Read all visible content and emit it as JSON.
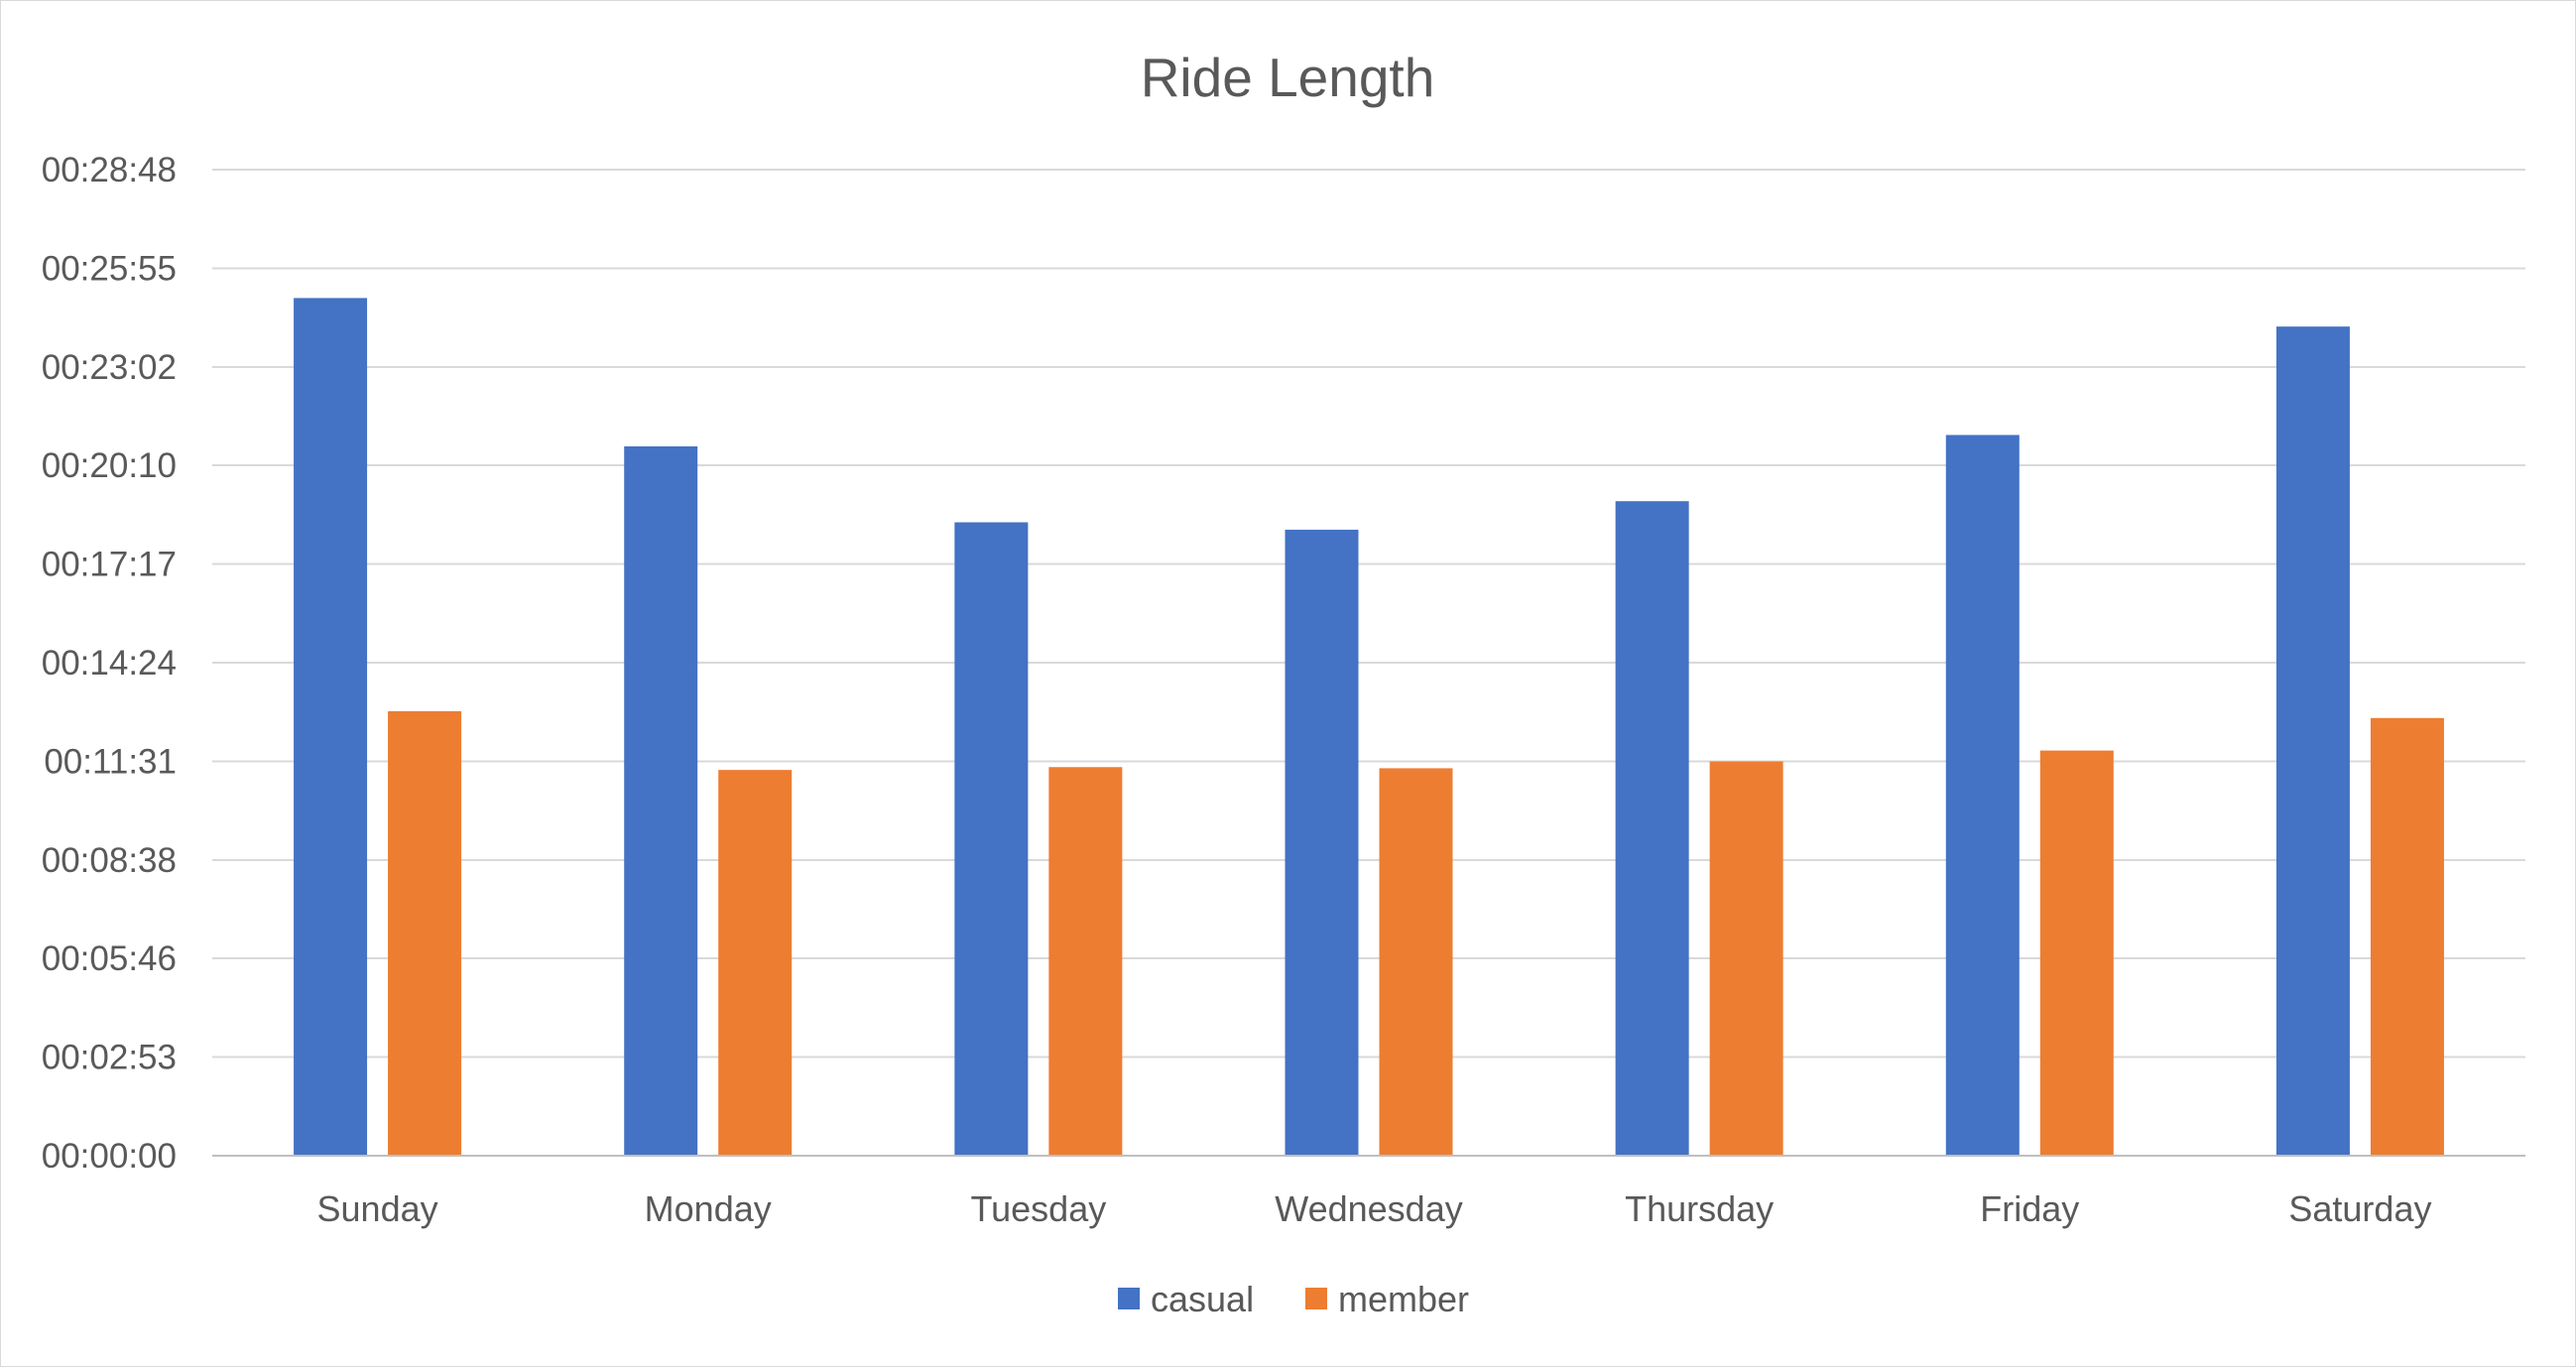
{
  "chart_data": {
    "type": "bar",
    "title": "Ride Length",
    "xlabel": "",
    "ylabel": "",
    "categories": [
      "Sunday",
      "Monday",
      "Tuesday",
      "Wednesday",
      "Thursday",
      "Friday",
      "Saturday"
    ],
    "series": [
      {
        "name": "casual",
        "color": "#4472C4",
        "values": [
          "00:25:03",
          "00:20:43",
          "00:18:30",
          "00:18:17",
          "00:19:07",
          "00:21:03",
          "00:24:13"
        ]
      },
      {
        "name": "member",
        "color": "#ED7D31",
        "values": [
          "00:12:59",
          "00:11:16",
          "00:11:21",
          "00:11:19",
          "00:11:31",
          "00:11:50",
          "00:12:47"
        ]
      }
    ],
    "yticks": [
      "00:00:00",
      "00:02:53",
      "00:05:46",
      "00:08:38",
      "00:11:31",
      "00:14:24",
      "00:17:17",
      "00:20:10",
      "00:23:02",
      "00:25:55",
      "00:28:48"
    ],
    "ylim": [
      "00:00:00",
      "00:28:48"
    ],
    "grid": true,
    "legend_position": "bottom"
  }
}
